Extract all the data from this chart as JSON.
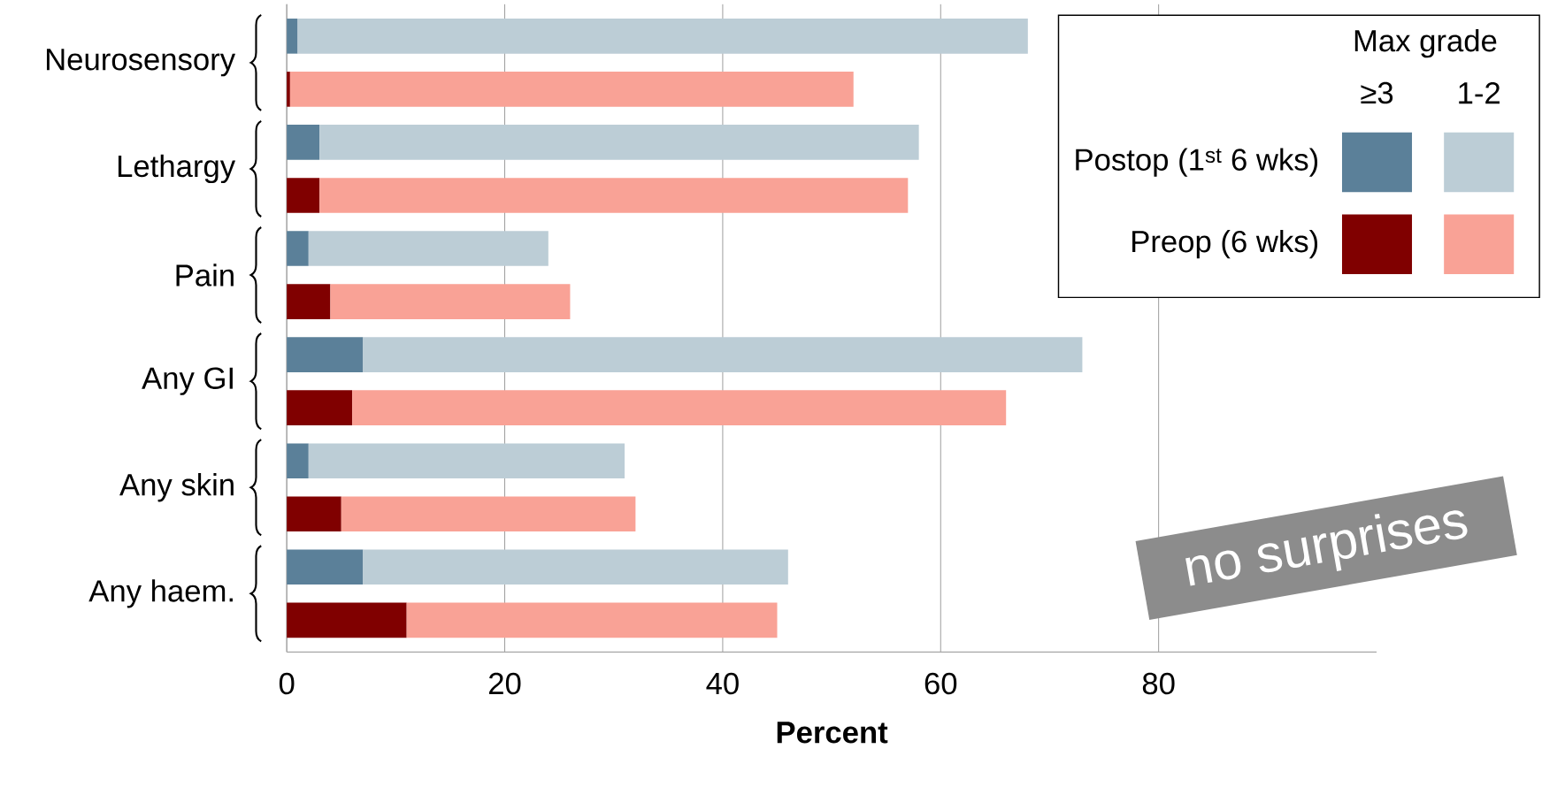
{
  "chart_data": {
    "type": "bar",
    "orientation": "horizontal",
    "stacked": true,
    "categories": [
      "Neurosensory",
      null,
      "Lethargy",
      null,
      "Pain",
      null,
      "Any GI",
      null,
      "Any skin",
      null,
      "Any haem.",
      null
    ],
    "series": [
      {
        "name": "Postop (1$^{st}$ 6 wks)",
        "color": "#5b8099",
        "values": [
          1,
          null,
          3,
          null,
          2,
          null,
          7,
          null,
          2,
          null,
          7,
          null
        ]
      },
      {
        "color": "#bccdd6",
        "values": [
          67,
          null,
          55,
          null,
          22,
          null,
          66,
          null,
          29,
          null,
          39,
          null
        ]
      },
      {
        "name": "Preop (6 wks)",
        "color": "#800000",
        "values": [
          null,
          0.3,
          null,
          3,
          null,
          4,
          null,
          6,
          null,
          5,
          null,
          11
        ]
      },
      {
        "color": "#f9a296",
        "values": [
          null,
          51.7,
          null,
          54,
          null,
          22,
          null,
          60,
          null,
          27,
          null,
          34
        ]
      }
    ],
    "xlabel": "Percent",
    "legend_title": "Max grade",
    "legend": "top right",
    "grid": "x",
    "xlim": [
      0,
      100
    ],
    "xticks": [
      0,
      20,
      40,
      60,
      80
    ],
    "annotations": [
      "≥3",
      "1-2",
      "no surprises"
    ]
  }
}
